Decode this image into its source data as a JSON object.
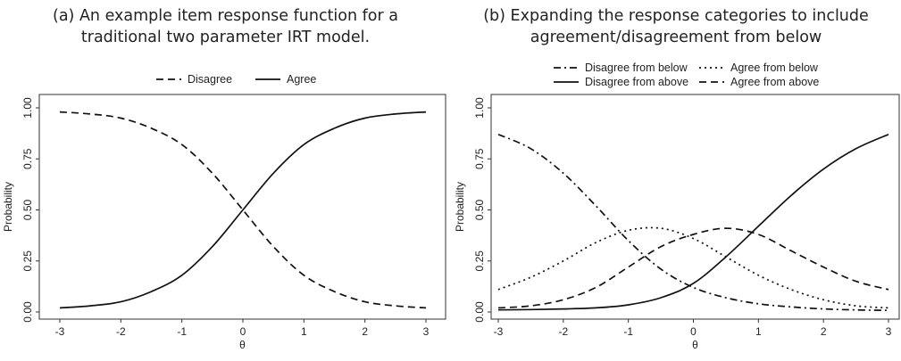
{
  "panels": [
    {
      "caption_line1": "(a) An example item response function for a",
      "caption_line2": "traditional two parameter IRT model."
    },
    {
      "caption_line1": "(b) Expanding the response categories to include",
      "caption_line2": "agreement/disagreement from below"
    }
  ],
  "chart_data": [
    {
      "type": "line",
      "title": "",
      "xlabel": "θ",
      "ylabel": "Probability",
      "xlim": [
        -3,
        3
      ],
      "ylim": [
        0,
        1
      ],
      "x_ticks": [
        "-3",
        "-2",
        "-1",
        "0",
        "1",
        "2",
        "3"
      ],
      "y_ticks": [
        "0.00",
        "0.25",
        "0.50",
        "0.75",
        "1.00"
      ],
      "legend_position": "top",
      "grid": false,
      "x": [
        -3,
        -2.5,
        -2,
        -1.5,
        -1,
        -0.5,
        0,
        0.5,
        1,
        1.5,
        2,
        2.5,
        3
      ],
      "series": [
        {
          "name": "Disagree",
          "dash": "dashed",
          "values": [
            0.98,
            0.97,
            0.95,
            0.9,
            0.82,
            0.68,
            0.5,
            0.32,
            0.18,
            0.1,
            0.05,
            0.03,
            0.02
          ]
        },
        {
          "name": "Agree",
          "dash": "solid",
          "values": [
            0.02,
            0.03,
            0.05,
            0.1,
            0.18,
            0.32,
            0.5,
            0.68,
            0.82,
            0.9,
            0.95,
            0.97,
            0.98
          ]
        }
      ]
    },
    {
      "type": "line",
      "title": "",
      "xlabel": "θ",
      "ylabel": "Probability",
      "xlim": [
        -3,
        3
      ],
      "ylim": [
        0,
        1
      ],
      "x_ticks": [
        "-3",
        "-2",
        "-1",
        "0",
        "1",
        "2",
        "3"
      ],
      "y_ticks": [
        "0.00",
        "0.25",
        "0.50",
        "0.75",
        "1.00"
      ],
      "legend_position": "top",
      "grid": false,
      "x": [
        -3,
        -2.5,
        -2,
        -1.5,
        -1,
        -0.5,
        0,
        0.5,
        1,
        1.5,
        2,
        2.5,
        3
      ],
      "series": [
        {
          "name": "Disagree from below",
          "dash": "dotdash",
          "values": [
            0.87,
            0.8,
            0.68,
            0.52,
            0.35,
            0.21,
            0.12,
            0.07,
            0.04,
            0.025,
            0.015,
            0.01,
            0.008
          ]
        },
        {
          "name": "Agree from below",
          "dash": "dotted",
          "values": [
            0.11,
            0.17,
            0.25,
            0.34,
            0.4,
            0.41,
            0.36,
            0.27,
            0.18,
            0.11,
            0.06,
            0.03,
            0.02
          ]
        },
        {
          "name": "Disagree from above",
          "dash": "solid",
          "values": [
            0.01,
            0.012,
            0.015,
            0.02,
            0.035,
            0.07,
            0.14,
            0.27,
            0.42,
            0.57,
            0.7,
            0.8,
            0.87
          ]
        },
        {
          "name": "Agree from above",
          "dash": "dashed",
          "values": [
            0.02,
            0.03,
            0.06,
            0.12,
            0.22,
            0.32,
            0.38,
            0.41,
            0.38,
            0.3,
            0.22,
            0.15,
            0.11
          ]
        }
      ]
    }
  ]
}
